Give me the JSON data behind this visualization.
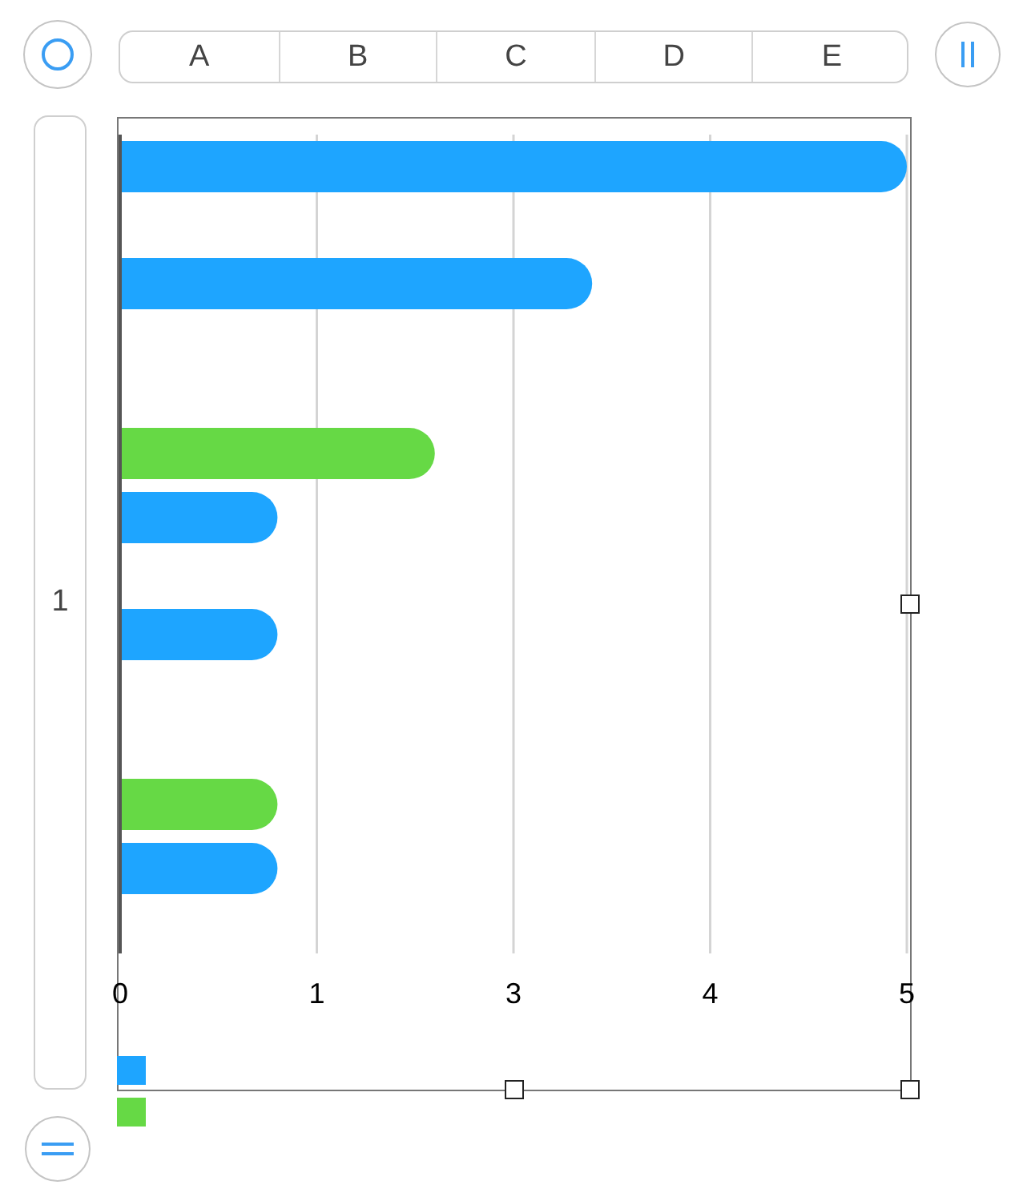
{
  "chart_data": {
    "type": "bar",
    "orientation": "horizontal",
    "categories": [
      null,
      null,
      null,
      null,
      null,
      null,
      null
    ],
    "series": [
      {
        "color": "#1ea5ff",
        "values": [
          5,
          3,
          null,
          1,
          1,
          null,
          1
        ]
      },
      {
        "color": "#66d945",
        "values": [
          null,
          null,
          2,
          null,
          null,
          1,
          null
        ]
      }
    ],
    "xlim": [
      0,
      5
    ],
    "xticks": [
      0,
      {
        "value": 1.25,
        "label": "1"
      },
      {
        "value": 2.5,
        "label": "3"
      },
      {
        "value": 3.75,
        "label": "4"
      },
      5
    ],
    "grid": "x",
    "annotations": [
      "A",
      "B",
      "C",
      "D",
      "E",
      "1"
    ]
  }
}
